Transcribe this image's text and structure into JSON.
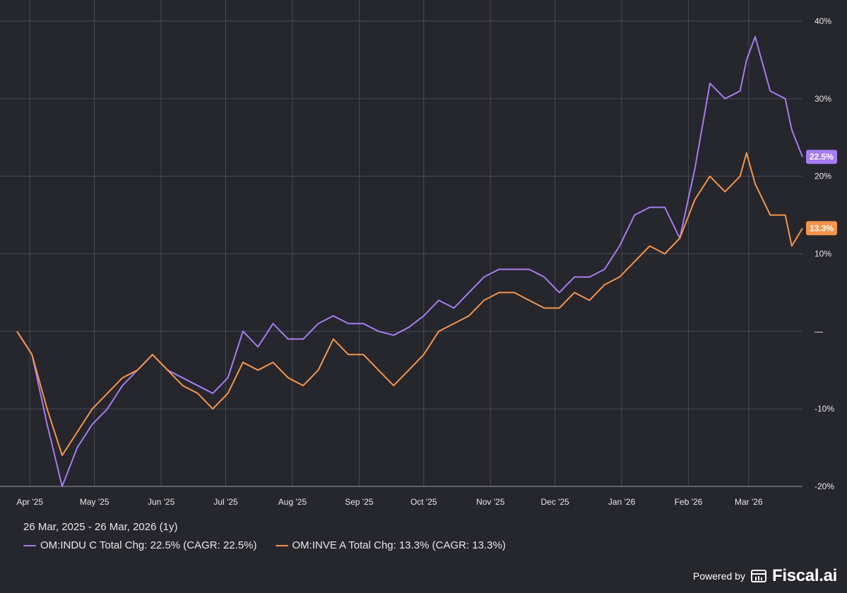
{
  "chart_data": {
    "type": "line",
    "x": [
      "26 Mar 2025",
      "02 Apr 2025",
      "09 Apr 2025",
      "16 Apr 2025",
      "23 Apr 2025",
      "30 Apr 2025",
      "07 May 2025",
      "14 May 2025",
      "21 May 2025",
      "28 May 2025",
      "04 Jun 2025",
      "11 Jun 2025",
      "18 Jun 2025",
      "25 Jun 2025",
      "02 Jul 2025",
      "09 Jul 2025",
      "16 Jul 2025",
      "23 Jul 2025",
      "30 Jul 2025",
      "06 Aug 2025",
      "13 Aug 2025",
      "20 Aug 2025",
      "27 Aug 2025",
      "03 Sep 2025",
      "10 Sep 2025",
      "17 Sep 2025",
      "24 Sep 2025",
      "01 Oct 2025",
      "08 Oct 2025",
      "15 Oct 2025",
      "22 Oct 2025",
      "29 Oct 2025",
      "05 Nov 2025",
      "12 Nov 2025",
      "19 Nov 2025",
      "26 Nov 2025",
      "03 Dec 2025",
      "10 Dec 2025",
      "17 Dec 2025",
      "24 Dec 2025",
      "31 Dec 2025",
      "07 Jan 2026",
      "14 Jan 2026",
      "21 Jan 2026",
      "28 Jan 2026",
      "04 Feb 2026",
      "11 Feb 2026",
      "18 Feb 2026",
      "25 Feb 2026",
      "28 Feb 2026",
      "04 Mar 2026",
      "11 Mar 2026",
      "18 Mar 2026",
      "21 Mar 2026",
      "26 Mar 2026"
    ],
    "series": [
      {
        "name": "OM:INDU C",
        "color": "#a57cf2",
        "values": [
          0,
          -3,
          -12,
          -20,
          -15,
          -12,
          -10,
          -7,
          -5,
          -3,
          -5,
          -6,
          -7,
          -8,
          -6,
          0,
          -2,
          1,
          -1,
          -1,
          1,
          2,
          1,
          1,
          0,
          -0.5,
          0.5,
          2,
          4,
          3,
          5,
          7,
          8,
          8,
          8,
          7,
          5,
          7,
          7,
          8,
          11,
          15,
          16,
          16,
          12,
          21,
          32,
          30,
          31,
          35,
          38,
          31,
          30,
          26,
          22.5
        ]
      },
      {
        "name": "OM:INVE A",
        "color": "#f5944a",
        "values": [
          0,
          -3,
          -10,
          -16,
          -13,
          -10,
          -8,
          -6,
          -5,
          -3,
          -5,
          -7,
          -8,
          -10,
          -8,
          -4,
          -5,
          -4,
          -6,
          -7,
          -5,
          -1,
          -3,
          -3,
          -5,
          -7,
          -5,
          -3,
          0,
          1,
          2,
          4,
          5,
          5,
          4,
          3,
          3,
          5,
          4,
          6,
          7,
          9,
          11,
          10,
          12,
          17,
          20,
          18,
          20,
          23,
          19,
          15,
          15,
          11,
          13.3
        ]
      }
    ],
    "ylim": [
      -20,
      40
    ],
    "yticks": [
      -20,
      -10,
      0,
      10,
      20,
      30,
      40
    ],
    "ytick_labels": [
      "-20%",
      "-10%",
      "—",
      "10%",
      "20%",
      "30%",
      "40%"
    ],
    "xtick_labels": [
      "Apr '25",
      "May '25",
      "Jun '25",
      "Jul '25",
      "Aug '25",
      "Sep '25",
      "Oct '25",
      "Nov '25",
      "Dec '25",
      "Jan '26",
      "Feb '26",
      "Mar '26"
    ],
    "xtick_dates": [
      "01 Apr 2025",
      "01 May 2025",
      "01 Jun 2025",
      "01 Jul 2025",
      "01 Aug 2025",
      "01 Sep 2025",
      "01 Oct 2025",
      "01 Nov 2025",
      "01 Dec 2025",
      "01 Jan 2026",
      "01 Feb 2026",
      "01 Mar 2026"
    ],
    "end_labels": [
      "22.5%",
      "13.3%"
    ],
    "grid": true,
    "legend_position": "bottom-left"
  },
  "date_range": "26 Mar, 2025 - 26 Mar, 2026 (1y)",
  "legend": [
    {
      "label": "OM:INDU C Total Chg: 22.5% (CAGR: 22.5%)",
      "color": "#a57cf2"
    },
    {
      "label": "OM:INVE A Total Chg: 13.3% (CAGR: 13.3%)",
      "color": "#f5944a"
    }
  ],
  "branding": {
    "powered_by": "Powered by",
    "brand": "Fiscal.ai",
    "logo_icon": "fiscal-logo-icon"
  },
  "colors": {
    "background": "#26262d",
    "grid": "#4a4a55",
    "text": "#e6e6ea"
  }
}
